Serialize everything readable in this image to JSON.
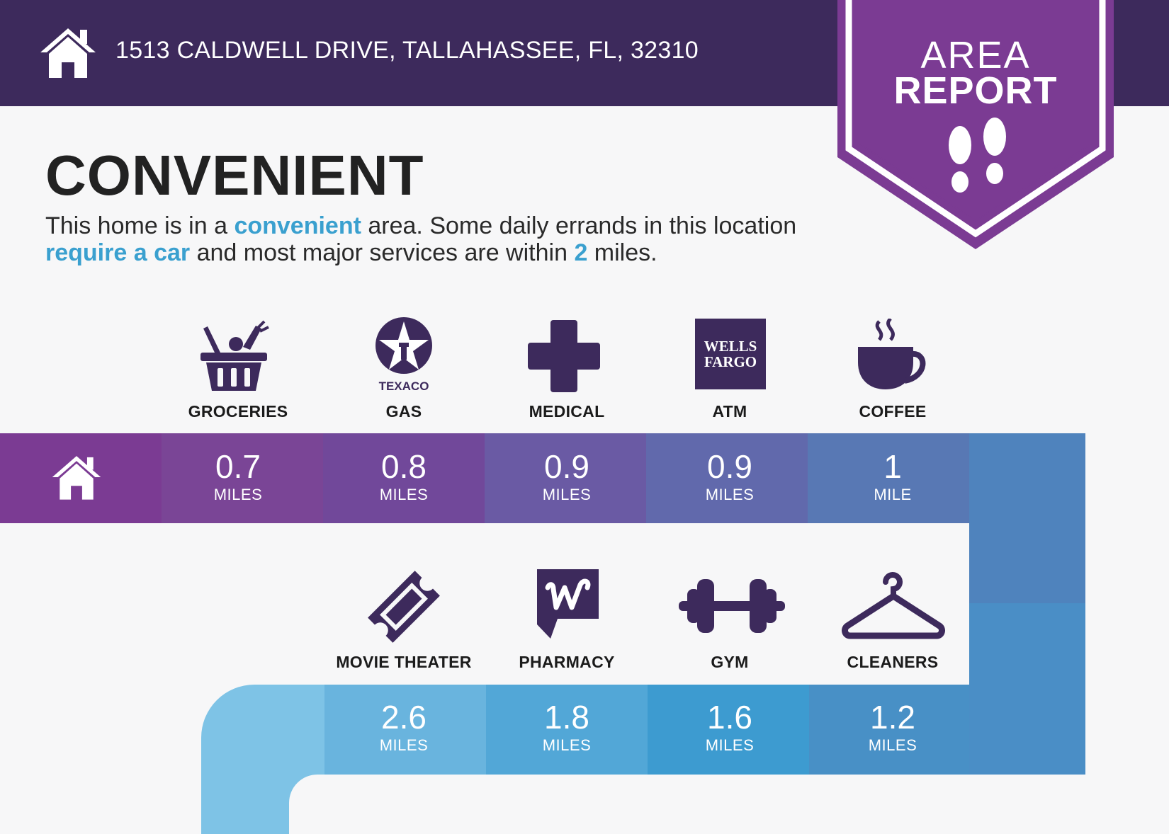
{
  "header": {
    "address": "1513 CALDWELL DRIVE, TALLAHASSEE, FL, 32310",
    "home_icon": "house-icon",
    "background": "#3d2a5c"
  },
  "badge": {
    "line1": "AREA",
    "line2": "REPORT",
    "icon": "footprints-icon",
    "color": "#7b3b93"
  },
  "title": "CONVENIENT",
  "description": {
    "part1": "This home is in a ",
    "highlight1": "convenient",
    "part2": " area. Some daily errands in this location ",
    "highlight2": "require a car",
    "part3": " and most major services are within ",
    "highlight3": "2",
    "part4": " miles.",
    "highlight_color": "#3aa0cf"
  },
  "row1": {
    "start_icon": "house-icon",
    "items": [
      {
        "label": "GROCERIES",
        "icon": "grocery-basket-icon",
        "distance": "0.7",
        "unit": "MILES",
        "color": "#7a4596"
      },
      {
        "label": "GAS",
        "icon": "texaco-logo-icon",
        "logo_text": "TEXACO",
        "distance": "0.8",
        "unit": "MILES",
        "color": "#71489a"
      },
      {
        "label": "MEDICAL",
        "icon": "medical-cross-icon",
        "distance": "0.9",
        "unit": "MILES",
        "color": "#6a5aa4"
      },
      {
        "label": "ATM",
        "icon": "wells-fargo-logo-icon",
        "logo_text_1": "WELLS",
        "logo_text_2": "FARGO",
        "distance": "0.9",
        "unit": "MILES",
        "color": "#6169ac"
      },
      {
        "label": "COFFEE",
        "icon": "coffee-cup-icon",
        "distance": "1",
        "unit": "MILE",
        "color": "#5878b4"
      }
    ]
  },
  "row2": {
    "items": [
      {
        "label": "MOVIE THEATER",
        "icon": "ticket-icon",
        "distance": "2.6",
        "unit": "MILES",
        "color": "#69b4de"
      },
      {
        "label": "PHARMACY",
        "icon": "walgreens-logo-icon",
        "distance": "1.8",
        "unit": "MILES",
        "color": "#52a7d7"
      },
      {
        "label": "GYM",
        "icon": "dumbbell-icon",
        "distance": "1.6",
        "unit": "MILES",
        "color": "#3d9bd0"
      },
      {
        "label": "CLEANERS",
        "icon": "hanger-icon",
        "distance": "1.2",
        "unit": "MILES",
        "color": "#4890c6"
      }
    ]
  }
}
